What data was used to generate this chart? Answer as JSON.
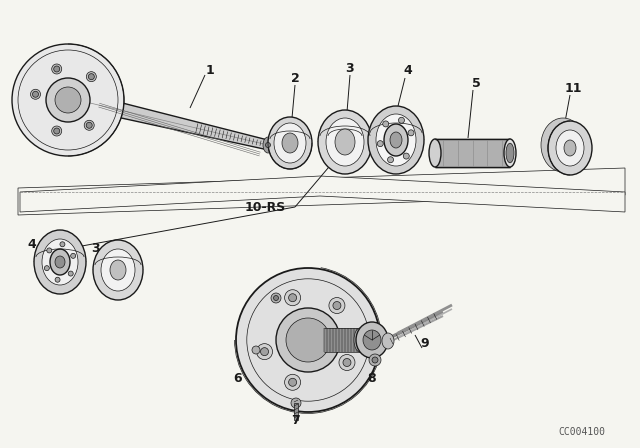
{
  "bg_color": "#f5f5f0",
  "line_color": "#1a1a1a",
  "watermark": "CC004100",
  "label_fs": 9,
  "lw_main": 1.0,
  "lw_thin": 0.5,
  "lw_thick": 1.3
}
